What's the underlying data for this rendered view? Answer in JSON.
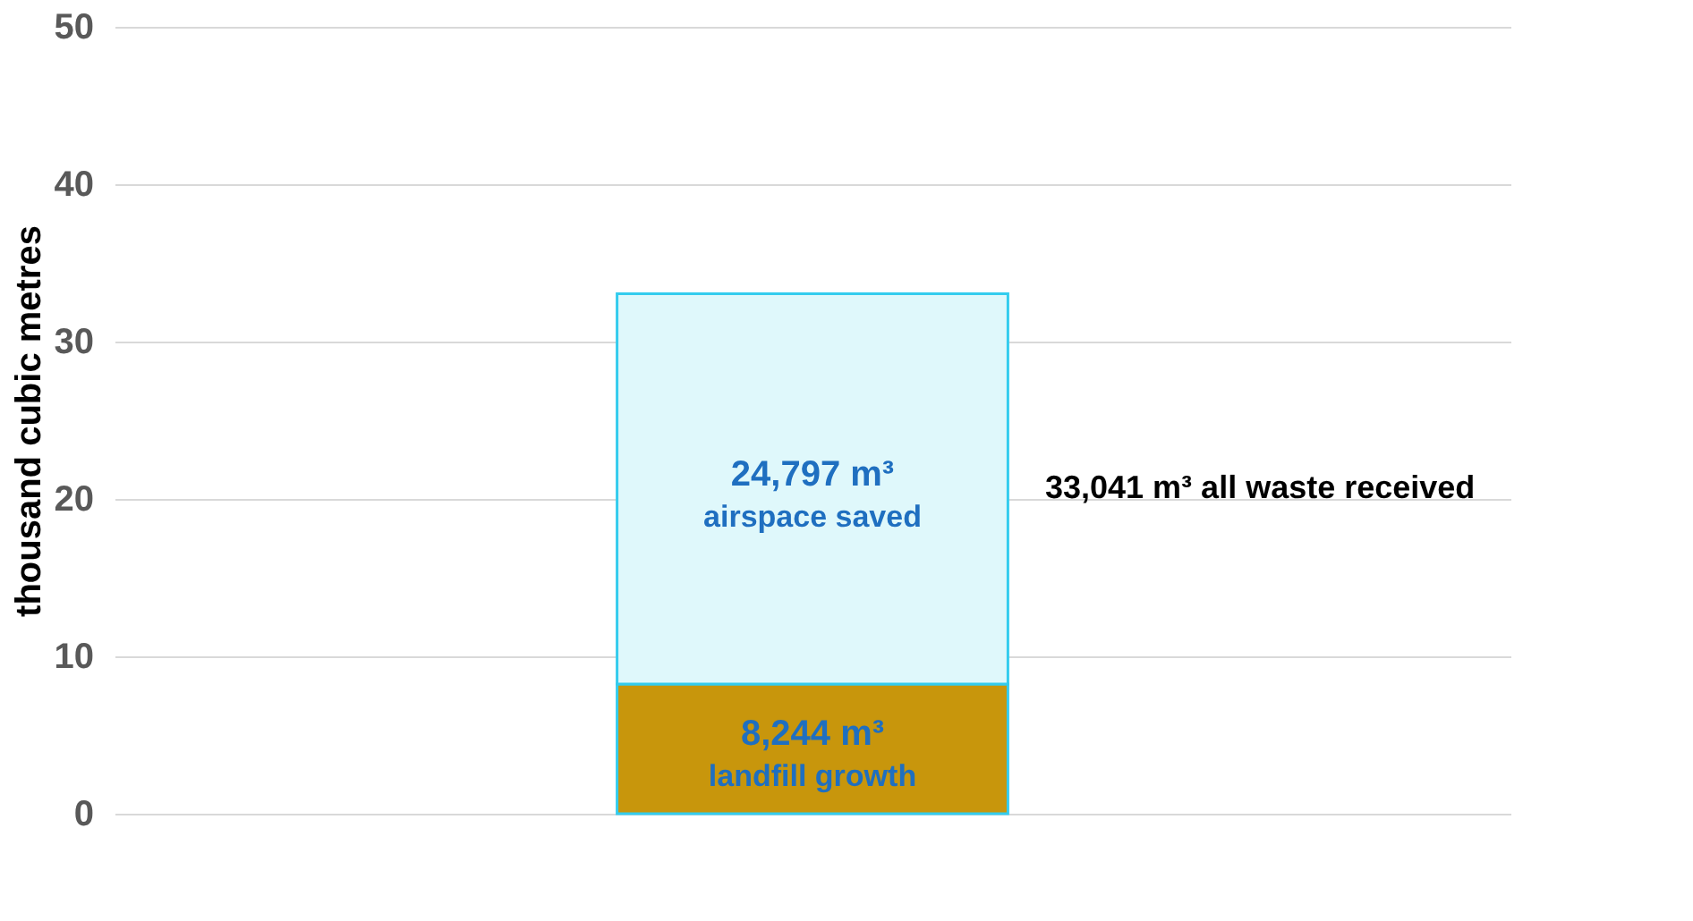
{
  "chart_data": {
    "type": "bar",
    "stacked": true,
    "categories": [
      null
    ],
    "ylabel": "thousand cubic metres",
    "ylim": [
      0,
      50
    ],
    "yticks": [
      0,
      10,
      20,
      30,
      40,
      50
    ],
    "grid": "y",
    "tick_labels": "y",
    "series": [
      {
        "name": "landfill growth",
        "color": "#c8960c",
        "values": [
          8.244
        ]
      },
      {
        "name": "airspace saved",
        "color": "#dff8fb",
        "values": [
          24.797
        ]
      }
    ],
    "annotations": [
      "8,244 m³",
      "24,797 m³",
      "33,041 m³ all waste received"
    ]
  }
}
